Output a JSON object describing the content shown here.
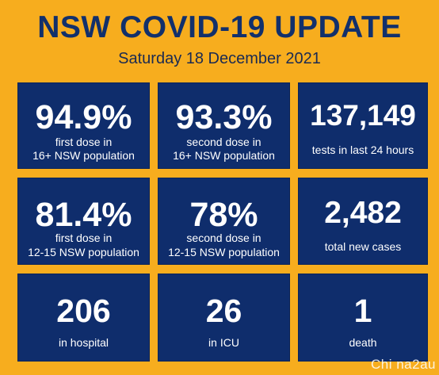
{
  "header": {
    "title": "NSW COVID-19 UPDATE",
    "date": "Saturday 18 December 2021"
  },
  "tiles": [
    {
      "value": "94.9%",
      "label_line1": "first dose in",
      "label_line2": "16+ NSW population"
    },
    {
      "value": "93.3%",
      "label_line1": "second dose in",
      "label_line2": "16+ NSW population"
    },
    {
      "value": "137,149",
      "label_line1": "tests in last 24 hours",
      "label_line2": ""
    },
    {
      "value": "81.4%",
      "label_line1": "first dose in",
      "label_line2": "12-15 NSW population"
    },
    {
      "value": "78%",
      "label_line1": "second dose in",
      "label_line2": "12-15 NSW population"
    },
    {
      "value": "2,482",
      "label_line1": "total new cases",
      "label_line2": ""
    },
    {
      "value": "206",
      "label_line1": "in hospital",
      "label_line2": ""
    },
    {
      "value": "26",
      "label_line1": "in ICU",
      "label_line2": ""
    },
    {
      "value": "1",
      "label_line1": "death",
      "label_line2": ""
    }
  ],
  "watermark": "Chi na2au",
  "colors": {
    "background": "#F7AD1E",
    "tile": "#0F2D6C",
    "title": "#12306B"
  }
}
